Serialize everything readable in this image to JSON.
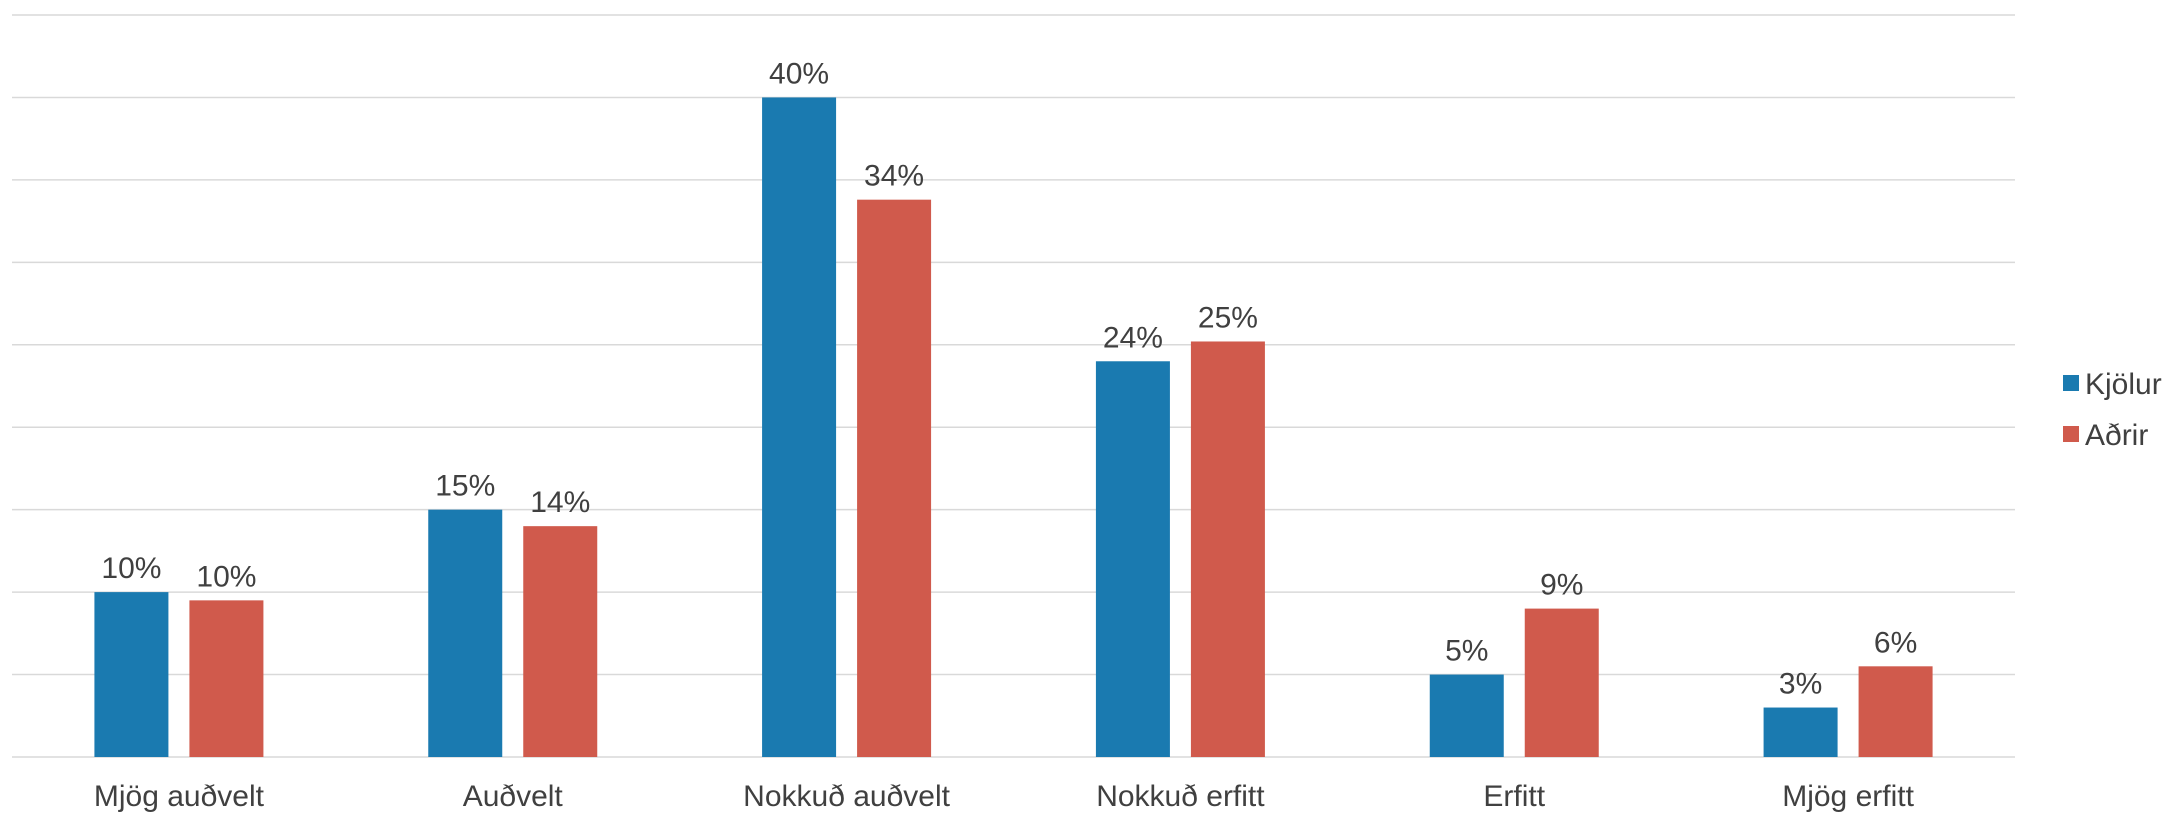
{
  "chart_data": {
    "type": "bar",
    "categories": [
      "Mjög auðvelt",
      "Auðvelt",
      "Nokkuð auðvelt",
      "Nokkuð erfitt",
      "Erfitt",
      "Mjög erfitt"
    ],
    "series": [
      {
        "name": "Kjölur",
        "color": "#1a7ab0",
        "values": [
          10,
          15,
          40,
          24,
          5,
          3
        ],
        "labels": [
          "10%",
          "15%",
          "40%",
          "24%",
          "5%",
          "3%"
        ]
      },
      {
        "name": "Aðrir",
        "color": "#d05a4c",
        "values": [
          9.5,
          14,
          33.8,
          25.2,
          9,
          5.5
        ],
        "labels": [
          "10%",
          "14%",
          "34%",
          "25%",
          "9%",
          "6%"
        ]
      }
    ],
    "ylim": [
      0,
      45
    ],
    "ytick_step": 5,
    "grid": true,
    "legend_position": "right",
    "label_color": "#404040",
    "grid_color": "#d9d9d9"
  }
}
